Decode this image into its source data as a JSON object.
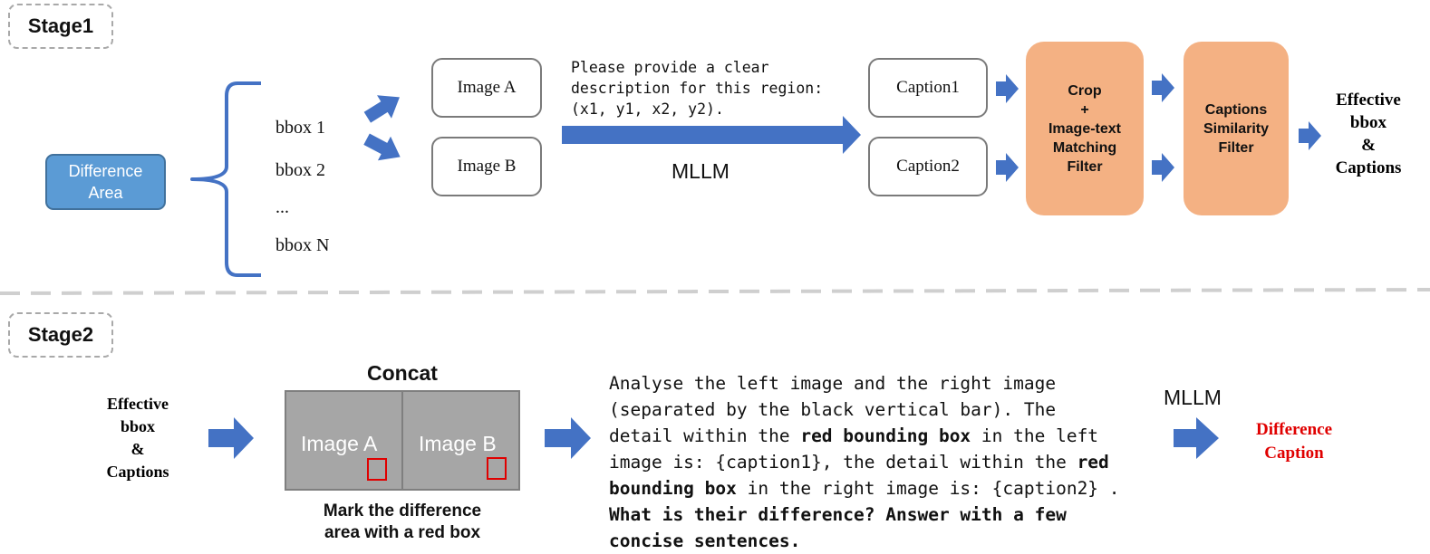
{
  "stage1": {
    "label": "Stage1",
    "difference_area": [
      "Difference",
      "Area"
    ],
    "bboxes": [
      "bbox 1",
      "bbox 2",
      "...",
      "bbox N"
    ],
    "images": [
      "Image A",
      "Image B"
    ],
    "prompt_lines": [
      "Please provide a clear",
      "description for this region:",
      "(x1, y1, x2, y2)."
    ],
    "model": "MLLM",
    "captions": [
      "Caption1",
      "Caption2"
    ],
    "filter1_lines": [
      "Crop",
      "+",
      "Image-text",
      "Matching",
      "Filter"
    ],
    "filter2_lines": [
      "Captions",
      "Similarity",
      "Filter"
    ],
    "output_lines": [
      "Effective",
      "bbox",
      "&",
      "Captions"
    ]
  },
  "stage2": {
    "label": "Stage2",
    "input_lines": [
      "Effective",
      "bbox",
      "&",
      "Captions"
    ],
    "concat_title": "Concat",
    "images": [
      "Image A",
      "Image B"
    ],
    "mark_caption": [
      "Mark the difference",
      "area with a red box"
    ],
    "prompt": {
      "line1": "Analyse the left image and the right image",
      "line2": "(separated by the black vertical bar). The",
      "line3_pre": "detail within the ",
      "line3_bold": "red bounding box",
      "line3_post": " in the left",
      "line4_pre": "image is: {caption1}, the detail within the ",
      "line4_bold": "red",
      "line5_bold": "bounding box",
      "line5_post": " in the right image is: {caption2} .",
      "line6_bold": "What is their difference? Answer with a few",
      "line7_bold": "concise sentences."
    },
    "model": "MLLM",
    "output_lines": [
      "Difference",
      "Caption"
    ]
  },
  "colors": {
    "arrow_blue": "#4472c4",
    "bracket_blue": "#4472c4",
    "difference_area_fill": "#5b9bd5",
    "filter_orange": "#f4b183",
    "output_red": "#e00000",
    "panel_gray": "#a6a6a6"
  }
}
